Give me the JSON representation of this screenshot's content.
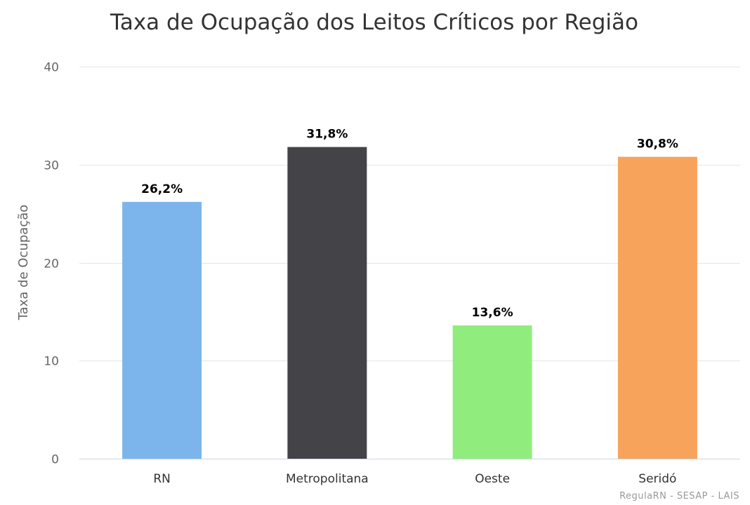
{
  "chart_data": {
    "type": "bar",
    "title": "Taxa de Ocupação dos Leitos Críticos por Região",
    "ylabel": "Taxa de Ocupação",
    "xlabel": "",
    "categories": [
      "RN",
      "Metropolitana",
      "Oeste",
      "Seridó"
    ],
    "values": [
      26.2,
      31.8,
      13.6,
      30.8
    ],
    "data_labels": [
      "26,2%",
      "31,8%",
      "13,6%",
      "30,8%"
    ],
    "colors": [
      "#7cb5ec",
      "#434348",
      "#90ed7d",
      "#f7a35c"
    ],
    "ylim": [
      0,
      40
    ],
    "yticks": [
      0,
      10,
      20,
      30,
      40
    ],
    "grid": true,
    "legend": "none"
  },
  "credits": "RegulaRN - SESAP - LAIS"
}
